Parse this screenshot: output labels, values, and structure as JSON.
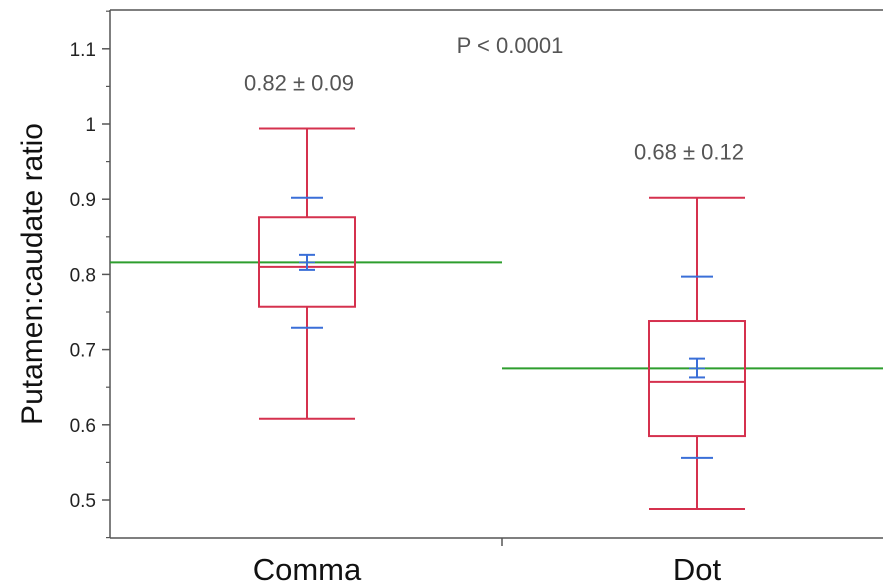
{
  "chart_data": {
    "type": "box",
    "ylabel": "Putamen:caudate ratio",
    "ylim": [
      0.45,
      1.15
    ],
    "yticks": [
      "0.5",
      "0.6",
      "0.7",
      "0.8",
      "0.9",
      "1",
      "1.1"
    ],
    "categories": [
      "Comma",
      "Dot"
    ],
    "boxes": [
      {
        "category": "Comma",
        "whisker_low": 0.608,
        "q1": 0.757,
        "median": 0.81,
        "q3": 0.876,
        "whisker_high": 0.994,
        "mean": 0.816,
        "mean_ci": [
          0.806,
          0.826
        ],
        "sd_range": [
          0.729,
          0.902
        ],
        "group_mean": 0.816,
        "annotation": "0.82 ± 0.09"
      },
      {
        "category": "Dot",
        "whisker_low": 0.488,
        "q1": 0.585,
        "median": 0.657,
        "q3": 0.738,
        "whisker_high": 0.902,
        "mean": 0.675,
        "mean_ci": [
          0.663,
          0.688
        ],
        "sd_range": [
          0.556,
          0.797
        ],
        "group_mean": 0.675,
        "annotation": "0.68 ± 0.12"
      }
    ],
    "p_value_label": "P < 0.0001",
    "colors": {
      "box": "#d5314e",
      "mean_marker": "#3a6fd8",
      "group_mean_line": "#2e9e2e",
      "axis": "#555555"
    }
  }
}
